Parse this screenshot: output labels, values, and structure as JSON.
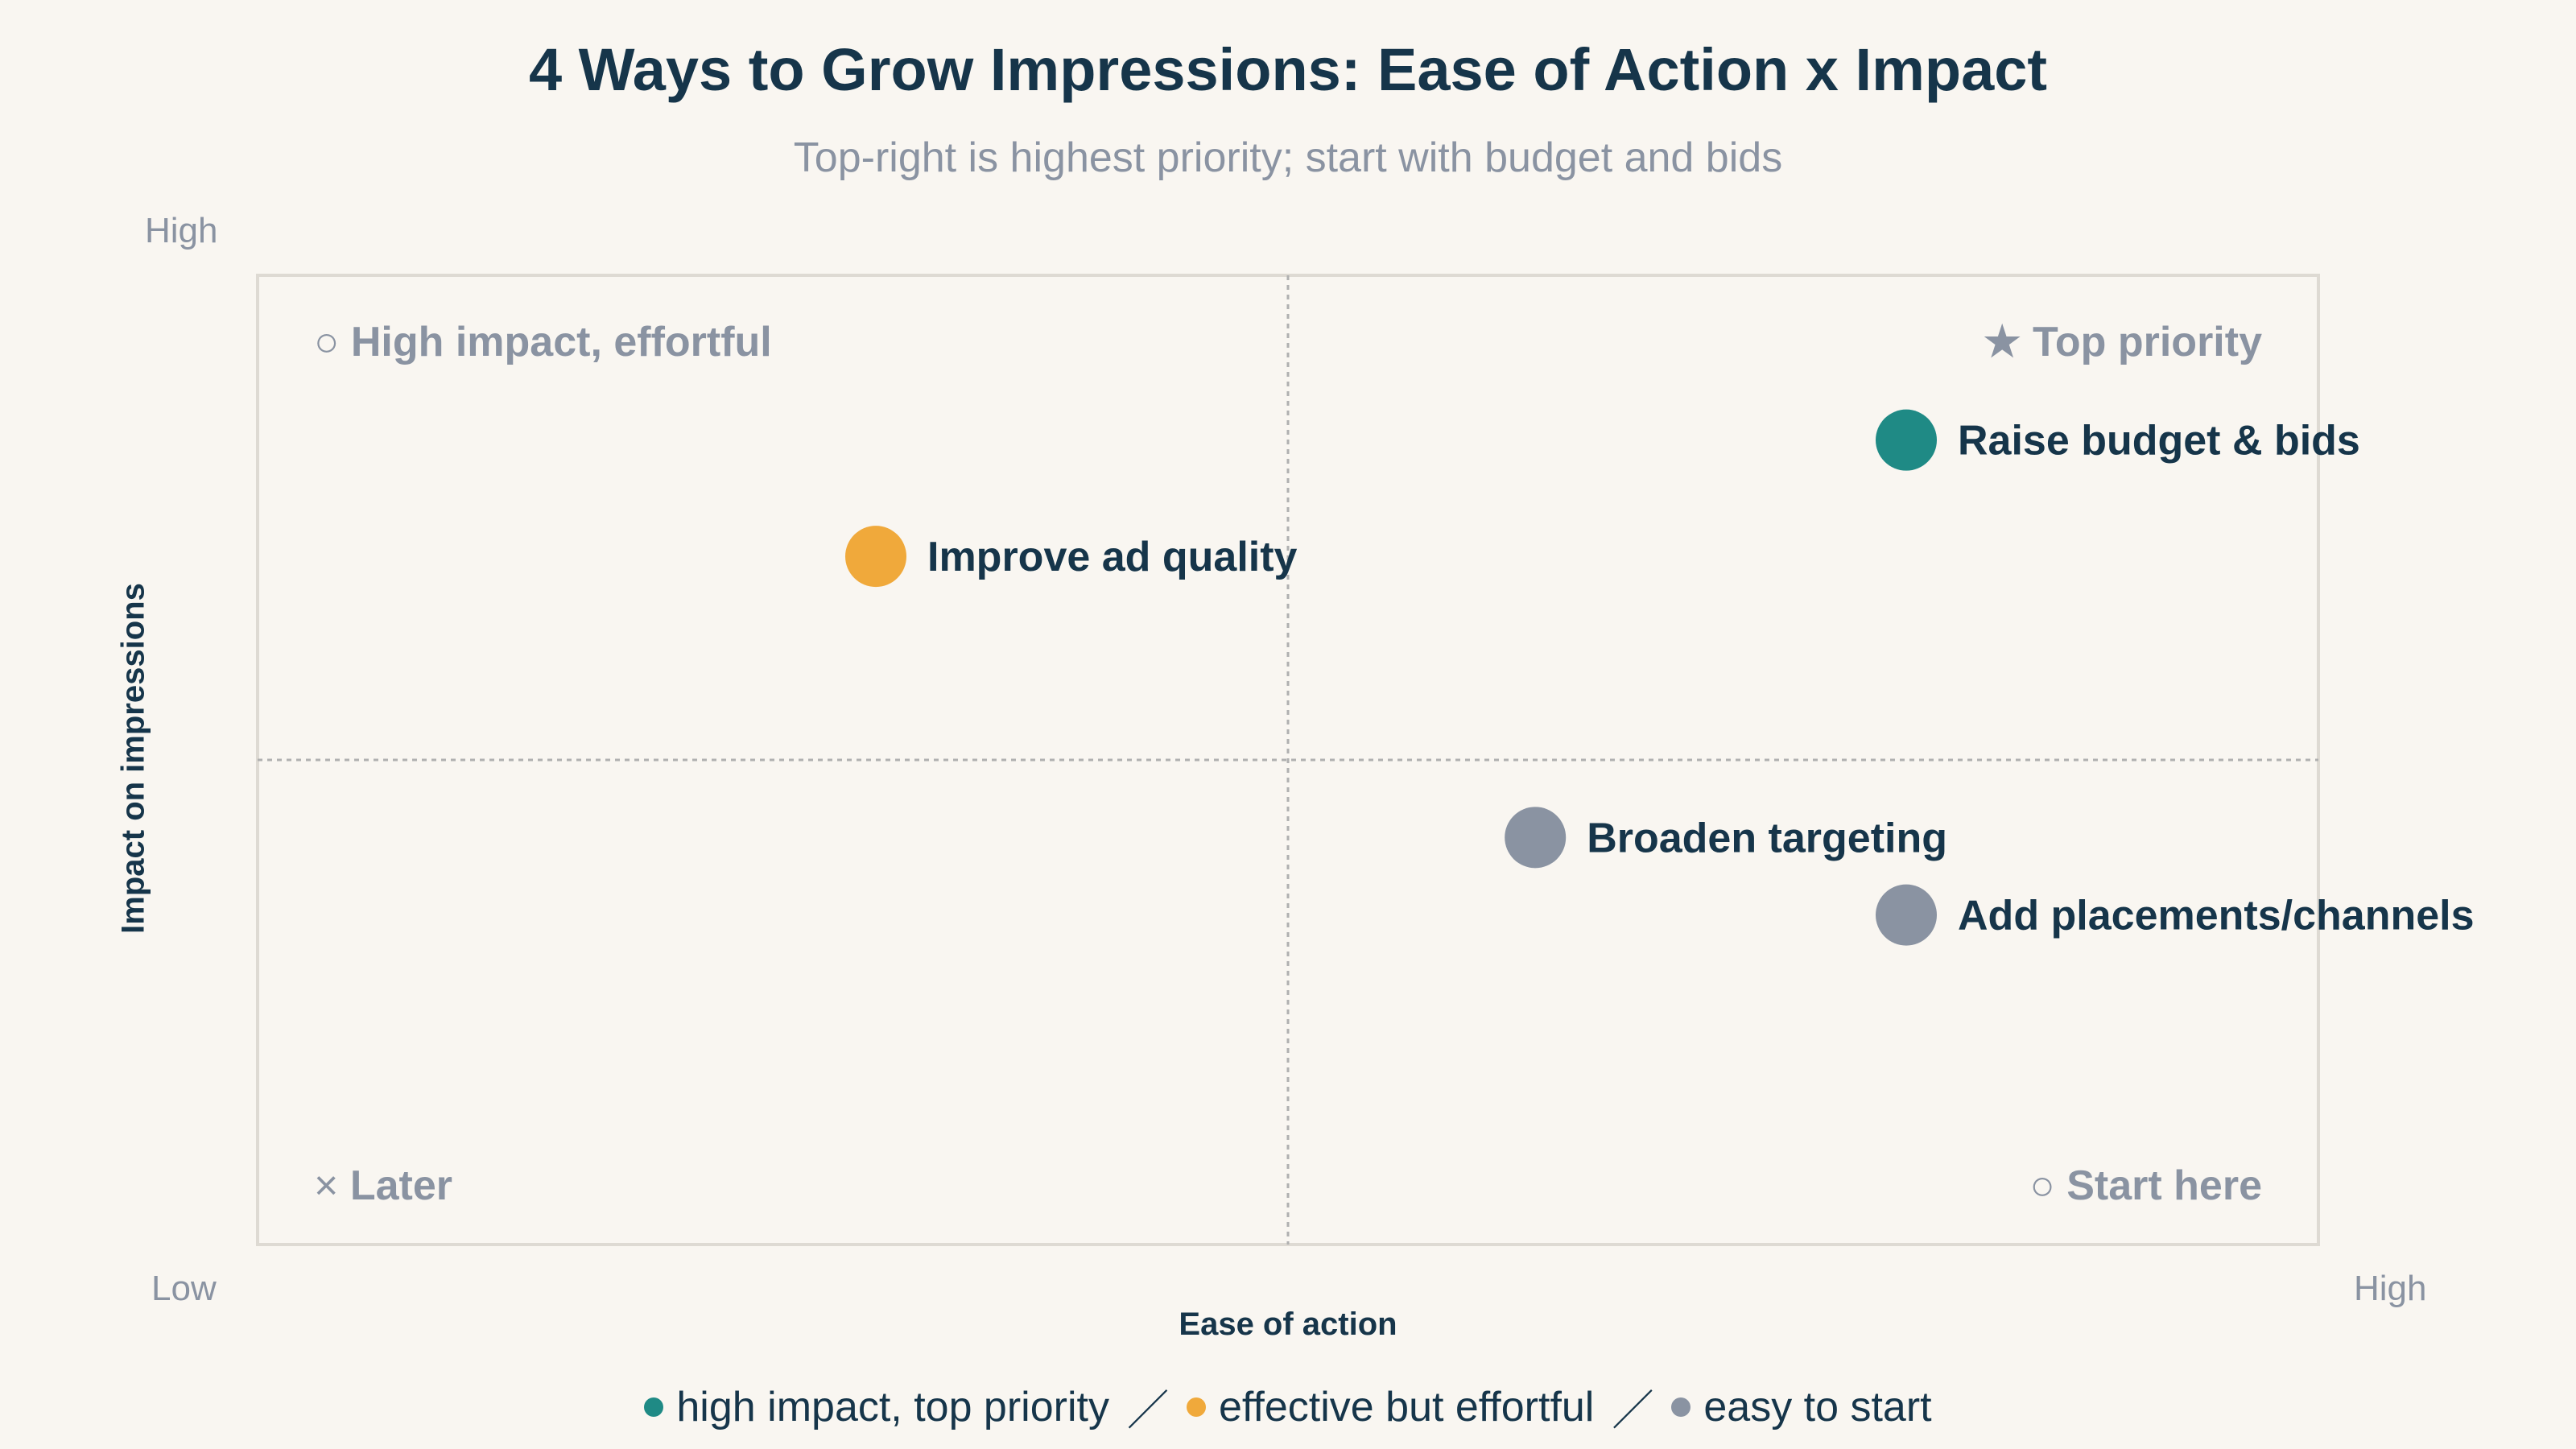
{
  "chart_data": {
    "type": "scatter",
    "title": "4 Ways to Grow Impressions: Ease of Action x Impact",
    "subtitle": "Top-right is highest priority; start with budget and bids",
    "xlabel": "Ease of action",
    "ylabel": "Impact on impressions",
    "x_ticks": {
      "low": "Low",
      "high": "High"
    },
    "y_ticks": {
      "low": "",
      "high": "High"
    },
    "xlim": [
      0,
      1
    ],
    "ylim": [
      0,
      1
    ],
    "midlines": {
      "x": 0.5,
      "y": 0.5
    },
    "quadrants": [
      {
        "label": "High impact, effortful",
        "marker": "○",
        "corner": "top-left"
      },
      {
        "label": "Top priority",
        "marker": "★",
        "corner": "top-right"
      },
      {
        "label": "Later",
        "marker": "×",
        "corner": "bottom-left"
      },
      {
        "label": "Start here",
        "marker": "○",
        "corner": "bottom-right"
      }
    ],
    "points": [
      {
        "label": "Raise budget & bids",
        "x": 0.8,
        "y": 0.83,
        "group": "high impact, top priority"
      },
      {
        "label": "Improve ad quality",
        "x": 0.3,
        "y": 0.71,
        "group": "effective but effortful"
      },
      {
        "label": "Broaden targeting",
        "x": 0.62,
        "y": 0.42,
        "group": "easy to start"
      },
      {
        "label": "Add placements/channels",
        "x": 0.8,
        "y": 0.34,
        "group": "easy to start"
      }
    ],
    "groups": [
      {
        "name": "high impact, top priority",
        "color": "#1f8a85"
      },
      {
        "name": "effective but effortful",
        "color": "#f0a93b"
      },
      {
        "name": "easy to start",
        "color": "#8a93a2"
      }
    ],
    "legend_separator": "／",
    "legend_placement": "bottom-center",
    "grid": false
  }
}
